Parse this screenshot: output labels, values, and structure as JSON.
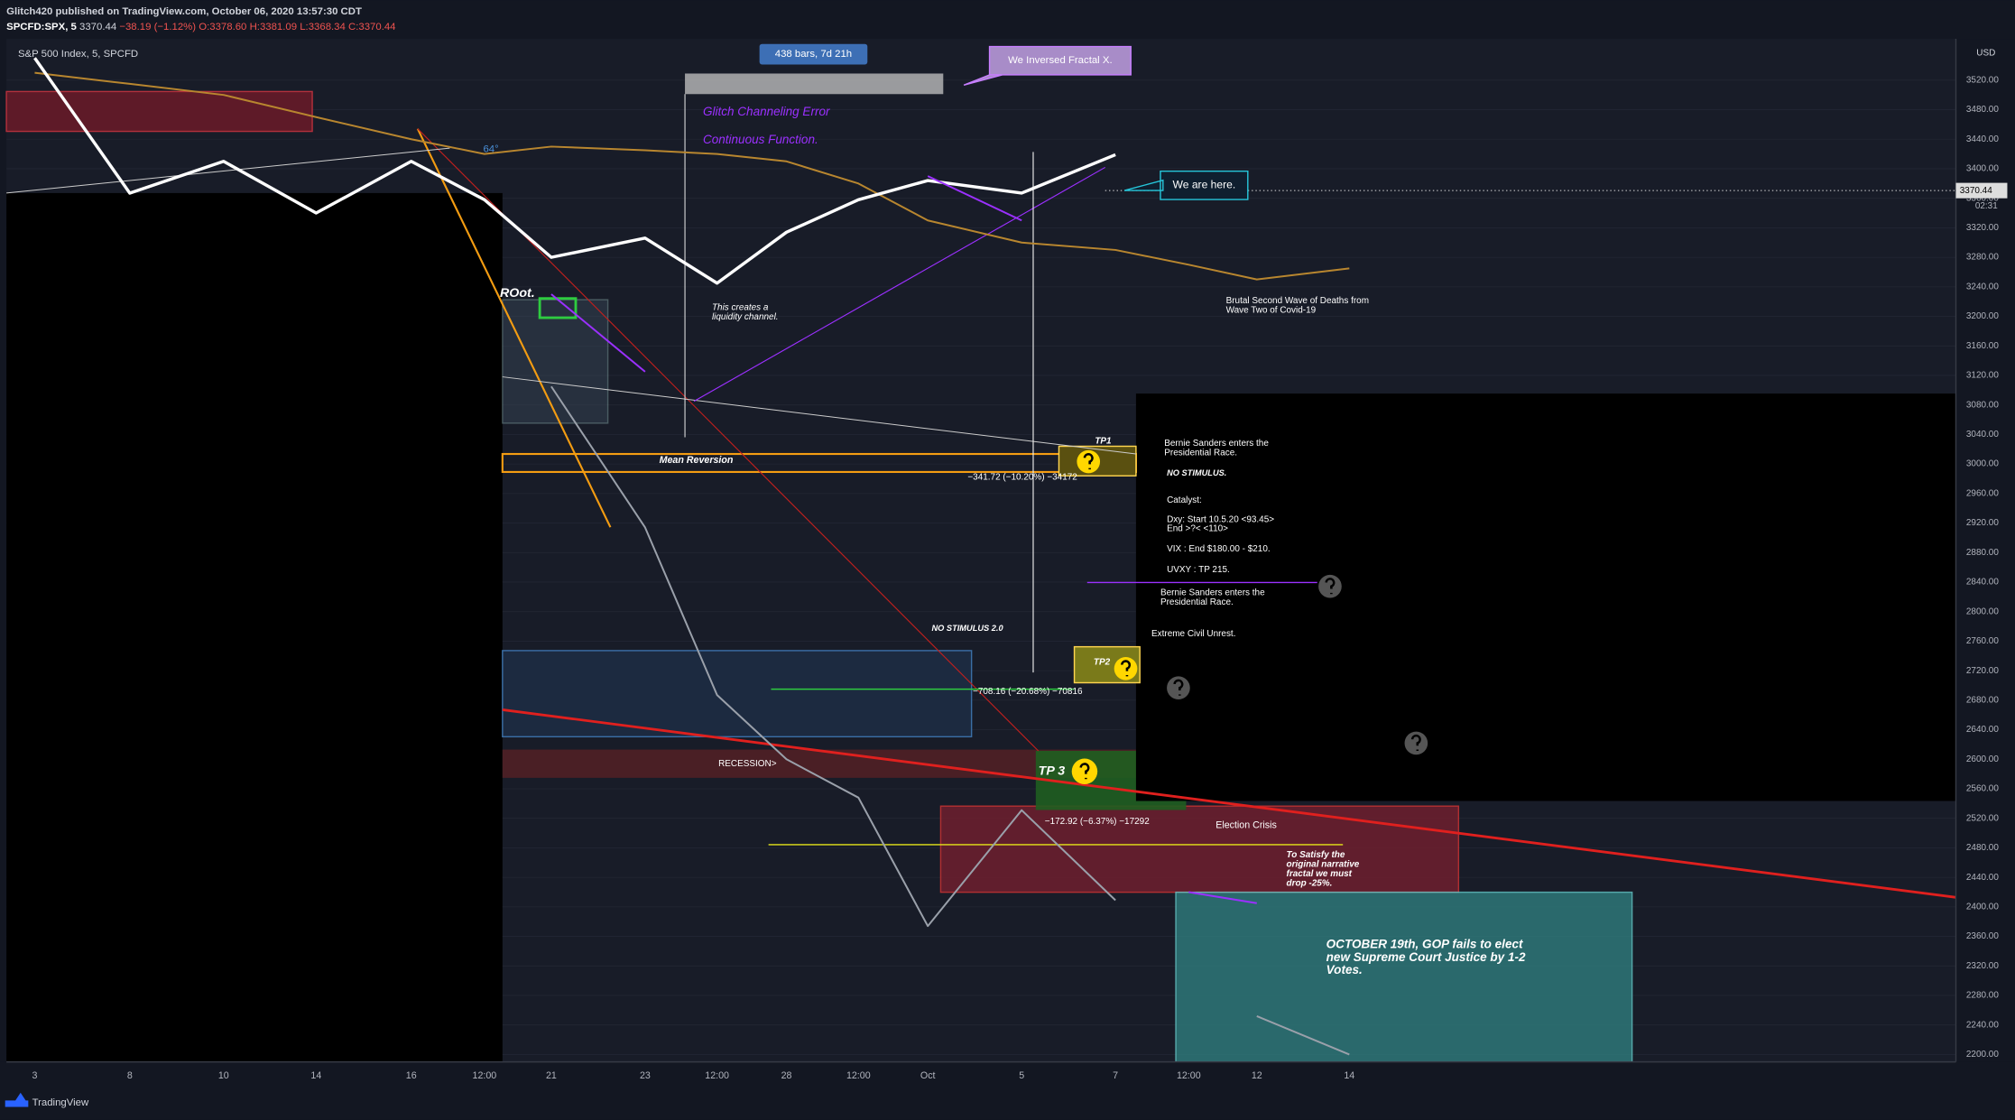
{
  "header": {
    "author_line": "Glitch420 published on TradingView.com, October 06, 2020 13:57:30 CDT",
    "symbol": "SPCFD:SPX, 5",
    "price": "3370.44",
    "change": "−38.19 (−1.12%)",
    "open": "O:3378.60",
    "high": "H:3381.09",
    "low": "L:3368.34",
    "close": "C:3370.44",
    "legend": "S&P 500 Index, 5, SPCFD",
    "brand": "TradingView"
  },
  "chart_data": {
    "type": "line",
    "currency": "USD",
    "last_price": 3370.44,
    "countdown": "02:31",
    "grid": true,
    "categories": [
      "3",
      "8",
      "10",
      "14",
      "16",
      "12:00",
      "21",
      "23",
      "12:00",
      "28",
      "12:00",
      "Oct",
      "5",
      "7",
      "12:00",
      "12",
      "14"
    ],
    "series": [
      {
        "color": "#b8862f",
        "values": [
          3530,
          3515,
          3500,
          3470,
          3440,
          3420,
          3430,
          3425,
          3420,
          3410,
          3380,
          3330,
          3300,
          3290,
          3270,
          3250,
          3265
        ]
      },
      {
        "color": "#9aa0aa",
        "values": [
          null,
          null,
          null,
          null,
          null,
          null,
          3105,
          2914,
          2687,
          2600,
          2548,
          2374,
          2531,
          2409,
          null,
          2252,
          2200
        ]
      },
      {
        "color": "#ffffff",
        "values": [
          3550,
          3367,
          3410,
          3340,
          3410,
          3358,
          3280,
          3306,
          3245,
          3314,
          3358,
          3384,
          3367,
          3419,
          null,
          null,
          null
        ]
      },
      {
        "color": "#9b30ff",
        "values": [
          null,
          null,
          null,
          null,
          null,
          null,
          3230,
          3125,
          null,
          null,
          null,
          3390,
          3330,
          null,
          2420,
          2405,
          null
        ]
      }
    ],
    "ylim": [
      2190,
      3576
    ],
    "yticks": [
      {
        "value": 2200,
        "label": "2200.00"
      },
      {
        "value": 2240,
        "label": "2240.00"
      },
      {
        "value": 2280,
        "label": "2280.00"
      },
      {
        "value": 2320,
        "label": "2320.00"
      },
      {
        "value": 2360,
        "label": "2360.00"
      },
      {
        "value": 2400,
        "label": "2400.00"
      },
      {
        "value": 2440,
        "label": "2440.00"
      },
      {
        "value": 2480,
        "label": "2480.00"
      },
      {
        "value": 2520,
        "label": "2520.00"
      },
      {
        "value": 2560,
        "label": "2560.00"
      },
      {
        "value": 2600,
        "label": "2600.00"
      },
      {
        "value": 2640,
        "label": "2640.00"
      },
      {
        "value": 2680,
        "label": "2680.00"
      },
      {
        "value": 2720,
        "label": "2720.00"
      },
      {
        "value": 2760,
        "label": "2760.00"
      },
      {
        "value": 2800,
        "label": "2800.00"
      },
      {
        "value": 2840,
        "label": "2840.00"
      },
      {
        "value": 2880,
        "label": "2880.00"
      },
      {
        "value": 2920,
        "label": "2920.00"
      },
      {
        "value": 2960,
        "label": "2960.00"
      },
      {
        "value": 3000,
        "label": "3000.00"
      },
      {
        "value": 3040,
        "label": "3040.00"
      },
      {
        "value": 3080,
        "label": "3080.00"
      },
      {
        "value": 3120,
        "label": "3120.00"
      },
      {
        "value": 3160,
        "label": "3160.00"
      },
      {
        "value": 3200,
        "label": "3200.00"
      },
      {
        "value": 3240,
        "label": "3240.00"
      },
      {
        "value": 3280,
        "label": "3280.00"
      },
      {
        "value": 3320,
        "label": "3320.00"
      },
      {
        "value": 3360,
        "label": "3360.00"
      },
      {
        "value": 3400,
        "label": "3400.00"
      },
      {
        "value": 3440,
        "label": "3440.00"
      },
      {
        "value": 3480,
        "label": "3480.00"
      },
      {
        "value": 3520,
        "label": "3520.00"
      }
    ],
    "annotations": [
      [
        "438 bars, 7d 21h"
      ],
      [
        "We Inversed Fractal X."
      ],
      [
        "Glitch Channeling Error"
      ],
      [
        "Continuous Function."
      ],
      [
        "We are here."
      ],
      [
        "64°"
      ],
      [
        "ROot."
      ],
      [
        "This creates a",
        "liquidity channel."
      ],
      [
        "Mean Reversion"
      ],
      [
        "TP1"
      ],
      [
        "−341.72 (−10.20%) −34172"
      ],
      [
        "Brutal Second Wave of Deaths from",
        "Wave Two of Covid-19"
      ],
      [
        "Bernie Sanders enters the",
        "Presidential Race."
      ],
      [
        "NO STIMULUS."
      ],
      [
        "Catalyst:"
      ],
      [
        "Dxy: Start 10.5.20 <93.45>",
        "End >?< <110>"
      ],
      [
        "VIX : End $180.00 - $210."
      ],
      [
        "UVXY : TP 215."
      ],
      [
        "Bernie Sanders enters the",
        "Presidential Race."
      ],
      [
        "Extreme Civil Unrest."
      ],
      [
        "NO STIMULUS 2.0"
      ],
      [
        "TP2"
      ],
      [
        "−708.16 (−20.68%) −70816"
      ],
      [
        "RECESSION>"
      ],
      [
        "TP 3"
      ],
      [
        "−172.92 (−6.37%) −17292"
      ],
      [
        "Election Crisis"
      ],
      [
        "To Satisfy the",
        "original narrative",
        "fractal we must",
        "drop -25%."
      ],
      [
        "OCTOBER 19th, GOP fails to elect",
        "new Supreme Court Justice by 1-2",
        "Votes."
      ]
    ]
  }
}
